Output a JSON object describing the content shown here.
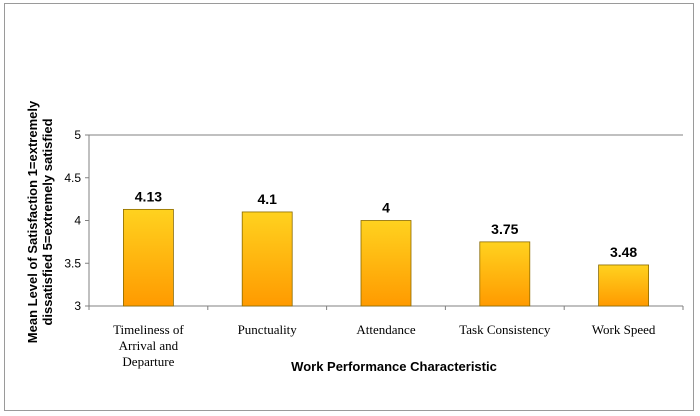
{
  "chart_data": {
    "type": "bar",
    "categories": [
      [
        "Timeliness of",
        "Arrival and",
        "Departure"
      ],
      [
        "Punctuality"
      ],
      [
        "Attendance"
      ],
      [
        "Task Consistency"
      ],
      [
        "Work Speed"
      ]
    ],
    "values": [
      4.13,
      4.1,
      4,
      3.75,
      3.48
    ],
    "data_labels": [
      "4.13",
      "4.1",
      "4",
      "3.75",
      "3.48"
    ],
    "xlabel": "Work Performance Characteristic",
    "ylabel": [
      "Mean Level of Satisfaction 1=extremely",
      "dissatisfied 5=extremely satisfied"
    ],
    "ylim": [
      3,
      5
    ],
    "yticks": [
      3,
      3.5,
      4,
      4.5,
      5
    ],
    "ytick_labels": [
      "3",
      "3.5",
      "4",
      "4.5",
      "5"
    ],
    "grid": true,
    "legend": "none",
    "colors": {
      "bar_top": "#FFD21F",
      "bar_bottom": "#FF9A00",
      "bar_stroke": "#8a6a00",
      "grid": "#808080"
    }
  }
}
